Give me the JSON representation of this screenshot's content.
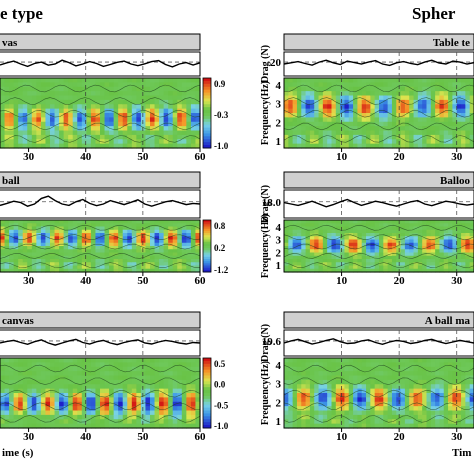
{
  "headers": {
    "left": "e type",
    "right": "Spher"
  },
  "chart_data": [
    {
      "type": "heatmap",
      "panel_label": "vas",
      "x_ticks": [
        30,
        40,
        50,
        60
      ],
      "xlim": [
        25,
        60
      ],
      "xlabel": "",
      "colorbar": {
        "ticks": [
          "0.9",
          "-0.3",
          "-1.0"
        ],
        "range": [
          -1.0,
          0.9
        ]
      },
      "drag_series": [
        0.46,
        0.55,
        0.62,
        0.5,
        0.4,
        0.52,
        0.58,
        0.45,
        0.5,
        0.66,
        0.56,
        0.42,
        0.5,
        0.6,
        0.52,
        0.4,
        0.48,
        0.57,
        0.62,
        0.5,
        0.43,
        0.51,
        0.6,
        0.64,
        0.48,
        0.38,
        0.5,
        0.56,
        0.46,
        0.55
      ],
      "dashed_gridlines_x": [
        40,
        50
      ]
    },
    {
      "type": "heatmap",
      "panel_label": "Table te",
      "x_ticks": [
        10,
        20,
        30
      ],
      "xlim": [
        0,
        33
      ],
      "ylabel": "Drag (N)",
      "y2label": "Frequency(Hz)",
      "drag_ticks": [
        "20"
      ],
      "freq_ticks": [
        "4",
        "3",
        "2",
        "1"
      ],
      "drag_series": [
        0.5,
        0.55,
        0.6,
        0.52,
        0.45,
        0.58,
        0.66,
        0.55,
        0.48,
        0.62,
        0.56,
        0.5,
        0.58,
        0.64,
        0.5,
        0.44,
        0.55,
        0.6,
        0.52,
        0.47,
        0.58,
        0.66,
        0.54,
        0.5,
        0.62,
        0.58,
        0.5,
        0.56
      ],
      "dashed_gridlines_x": [
        10,
        20,
        30
      ]
    },
    {
      "type": "heatmap",
      "panel_label": "ball",
      "x_ticks": [
        30,
        40,
        50,
        60
      ],
      "xlim": [
        25,
        60
      ],
      "colorbar": {
        "ticks": [
          "0.8",
          "0.2",
          "-1.2"
        ],
        "range": [
          -1.2,
          0.8
        ]
      },
      "drag_series": [
        0.45,
        0.52,
        0.6,
        0.55,
        0.42,
        0.5,
        0.7,
        0.78,
        0.62,
        0.5,
        0.45,
        0.58,
        0.66,
        0.52,
        0.44,
        0.5,
        0.62,
        0.55,
        0.48,
        0.56,
        0.65,
        0.5,
        0.42,
        0.5,
        0.58,
        0.62,
        0.55,
        0.48,
        0.52,
        0.5
      ],
      "dashed_gridlines_x": [
        40,
        50
      ]
    },
    {
      "type": "heatmap",
      "panel_label": "Balloo",
      "x_ticks": [
        10,
        20,
        30
      ],
      "xlim": [
        0,
        33
      ],
      "ylabel": "Drag (N)",
      "y2label": "Frequency(Hz)",
      "drag_ticks": [
        "18.0"
      ],
      "freq_ticks": [
        "4",
        "3",
        "2",
        "1"
      ],
      "drag_series": [
        0.55,
        0.5,
        0.45,
        0.52,
        0.6,
        0.5,
        0.4,
        0.48,
        0.58,
        0.66,
        0.55,
        0.45,
        0.52,
        0.6,
        0.55,
        0.48,
        0.42,
        0.5,
        0.58,
        0.62,
        0.5,
        0.44,
        0.52,
        0.6,
        0.56,
        0.5,
        0.46,
        0.5
      ],
      "dashed_gridlines_x": [
        10,
        20,
        30
      ]
    },
    {
      "type": "heatmap",
      "panel_label": "canvas",
      "x_ticks": [
        30,
        40,
        50,
        60
      ],
      "xlim": [
        25,
        60
      ],
      "xlabel": "ime (s)",
      "colorbar": {
        "ticks": [
          "0.5",
          "0.0",
          "-0.5",
          "-1.0"
        ],
        "range": [
          -1.0,
          0.7
        ]
      },
      "drag_series": [
        0.5,
        0.56,
        0.6,
        0.52,
        0.45,
        0.55,
        0.62,
        0.5,
        0.42,
        0.5,
        0.58,
        0.64,
        0.52,
        0.46,
        0.55,
        0.6,
        0.5,
        0.44,
        0.52,
        0.58,
        0.62,
        0.5,
        0.46,
        0.54,
        0.6,
        0.56,
        0.5,
        0.46,
        0.52,
        0.5
      ],
      "dashed_gridlines_x": [
        40,
        50
      ]
    },
    {
      "type": "heatmap",
      "panel_label": "A ball ma",
      "x_ticks": [
        10,
        20,
        30
      ],
      "xlim": [
        0,
        33
      ],
      "xlabel": "Tim",
      "ylabel": "Drag (N)",
      "y2label": "Frequency(Hz)",
      "drag_ticks": [
        "19.6"
      ],
      "freq_ticks": [
        "4",
        "3",
        "2",
        "1"
      ],
      "drag_series": [
        0.5,
        0.58,
        0.64,
        0.55,
        0.46,
        0.52,
        0.6,
        0.66,
        0.55,
        0.48,
        0.5,
        0.58,
        0.62,
        0.52,
        0.45,
        0.54,
        0.6,
        0.56,
        0.48,
        0.52,
        0.6,
        0.64,
        0.55,
        0.48,
        0.54,
        0.6,
        0.55,
        0.5
      ],
      "dashed_gridlines_x": [
        10,
        20,
        30
      ]
    }
  ]
}
